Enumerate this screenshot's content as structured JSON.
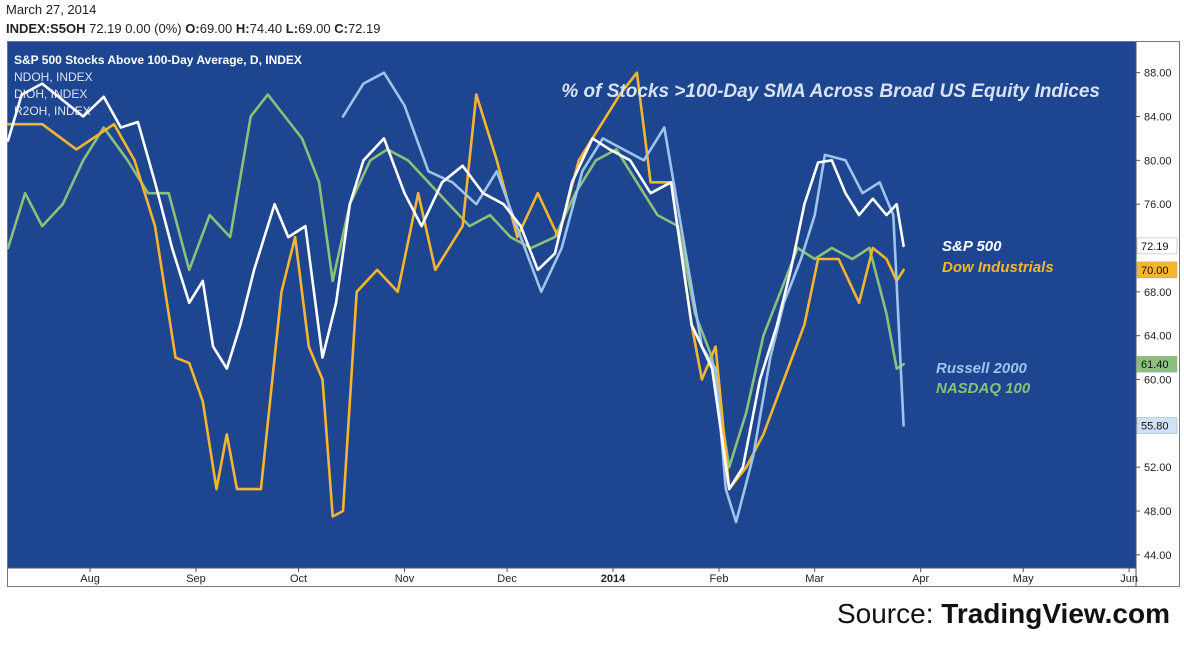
{
  "header": {
    "date": "March 27, 2014",
    "symbol": "INDEX:S5OH",
    "last": "72.19",
    "change": "0.00 (0%)",
    "open_label": "O:",
    "open": "69.00",
    "high_label": "H:",
    "high": "74.40",
    "low_label": "L:",
    "low": "69.00",
    "close_label": "C:",
    "close": "72.19"
  },
  "source": {
    "prefix": "Source: ",
    "brand": "TradingView.com"
  },
  "colors": {
    "background": "#1e4690",
    "sp500": "#ffffff",
    "dow": "#f5b52e",
    "russell": "#9ec4ec",
    "nasdaq": "#8cc07a"
  },
  "chart_data": {
    "type": "line",
    "title": "% of Stocks >100-Day SMA Across Broad US Equity Indices",
    "legend_top_left": [
      "S&P 500 Stocks Above 100-Day Average, D, INDEX",
      "NDOH, INDEX",
      "DIOH, INDEX",
      "R2OH, INDEX"
    ],
    "series_labels": [
      {
        "key": "sp500",
        "text": "S&P 500"
      },
      {
        "key": "dow",
        "text": "Dow Industrials"
      },
      {
        "key": "russell",
        "text": "Russell 2000"
      },
      {
        "key": "nasdaq",
        "text": "NASDAQ 100"
      }
    ],
    "x_ticks": [
      {
        "label": "Aug",
        "x": "2013-08-01"
      },
      {
        "label": "Sep",
        "x": "2013-09-01"
      },
      {
        "label": "Oct",
        "x": "2013-10-01"
      },
      {
        "label": "Nov",
        "x": "2013-11-01"
      },
      {
        "label": "Dec",
        "x": "2013-12-01"
      },
      {
        "label": "2014",
        "x": "2014-01-01"
      },
      {
        "label": "Feb",
        "x": "2014-02-01"
      },
      {
        "label": "Mar",
        "x": "2014-03-01"
      },
      {
        "label": "Apr",
        "x": "2014-04-01"
      },
      {
        "label": "May",
        "x": "2014-05-01"
      },
      {
        "label": "Jun",
        "x": "2014-06-01"
      }
    ],
    "xlim": [
      "2013-07-08",
      "2014-06-03"
    ],
    "y_ticks": [
      "44.00",
      "48.00",
      "52.00",
      "56.00",
      "60.00",
      "64.00",
      "68.00",
      "72.00",
      "76.00",
      "80.00",
      "84.00",
      "88.00"
    ],
    "ylim": [
      42.8,
      90.8
    ],
    "price_tags": [
      {
        "key": "sp500",
        "value": "72.19"
      },
      {
        "key": "dow",
        "value": "70.00"
      },
      {
        "key": "russell",
        "value": "55.80"
      },
      {
        "key": "nasdaq",
        "value": "61.40"
      }
    ],
    "series": [
      {
        "key": "sp500",
        "points": [
          [
            "2013-07-08",
            81.8
          ],
          [
            "2013-07-12",
            86
          ],
          [
            "2013-07-18",
            87
          ],
          [
            "2013-07-24",
            85.5
          ],
          [
            "2013-07-30",
            84
          ],
          [
            "2013-08-05",
            85.8
          ],
          [
            "2013-08-10",
            83
          ],
          [
            "2013-08-15",
            83.5
          ],
          [
            "2013-08-20",
            78
          ],
          [
            "2013-08-25",
            72
          ],
          [
            "2013-08-30",
            67
          ],
          [
            "2013-09-03",
            69
          ],
          [
            "2013-09-06",
            63
          ],
          [
            "2013-09-10",
            61
          ],
          [
            "2013-09-14",
            65
          ],
          [
            "2013-09-18",
            70
          ],
          [
            "2013-09-24",
            76
          ],
          [
            "2013-09-28",
            73
          ],
          [
            "2013-10-03",
            74
          ],
          [
            "2013-10-08",
            62
          ],
          [
            "2013-10-12",
            67
          ],
          [
            "2013-10-16",
            76
          ],
          [
            "2013-10-20",
            80
          ],
          [
            "2013-10-26",
            82
          ],
          [
            "2013-11-01",
            77
          ],
          [
            "2013-11-06",
            74
          ],
          [
            "2013-11-12",
            78
          ],
          [
            "2013-11-18",
            79.5
          ],
          [
            "2013-11-24",
            77
          ],
          [
            "2013-11-30",
            76
          ],
          [
            "2013-12-05",
            74
          ],
          [
            "2013-12-10",
            70
          ],
          [
            "2013-12-15",
            71.5
          ],
          [
            "2013-12-20",
            78
          ],
          [
            "2013-12-26",
            82
          ],
          [
            "2013-12-31",
            81
          ],
          [
            "2014-01-06",
            80
          ],
          [
            "2014-01-12",
            77
          ],
          [
            "2014-01-18",
            78
          ],
          [
            "2014-01-24",
            65
          ],
          [
            "2014-01-30",
            61
          ],
          [
            "2014-02-04",
            50
          ],
          [
            "2014-02-08",
            52
          ],
          [
            "2014-02-13",
            60
          ],
          [
            "2014-02-18",
            65
          ],
          [
            "2014-02-22",
            70
          ],
          [
            "2014-02-26",
            76
          ],
          [
            "2014-03-02",
            79.8
          ],
          [
            "2014-03-06",
            80
          ],
          [
            "2014-03-10",
            77
          ],
          [
            "2014-03-14",
            75
          ],
          [
            "2014-03-18",
            76.5
          ],
          [
            "2014-03-22",
            75
          ],
          [
            "2014-03-25",
            76
          ],
          [
            "2014-03-27",
            72.19
          ]
        ]
      },
      {
        "key": "dow",
        "points": [
          [
            "2013-07-08",
            83.3
          ],
          [
            "2013-07-18",
            83.3
          ],
          [
            "2013-07-28",
            81
          ],
          [
            "2013-08-08",
            83.3
          ],
          [
            "2013-08-14",
            80
          ],
          [
            "2013-08-20",
            74
          ],
          [
            "2013-08-26",
            62
          ],
          [
            "2013-08-30",
            61.5
          ],
          [
            "2013-09-03",
            58
          ],
          [
            "2013-09-07",
            50
          ],
          [
            "2013-09-10",
            55
          ],
          [
            "2013-09-13",
            50
          ],
          [
            "2013-09-20",
            50
          ],
          [
            "2013-09-26",
            68
          ],
          [
            "2013-09-30",
            73
          ],
          [
            "2013-10-04",
            63
          ],
          [
            "2013-10-08",
            60
          ],
          [
            "2013-10-11",
            47.5
          ],
          [
            "2013-10-14",
            48
          ],
          [
            "2013-10-18",
            68
          ],
          [
            "2013-10-24",
            70
          ],
          [
            "2013-10-30",
            68
          ],
          [
            "2013-11-05",
            77
          ],
          [
            "2013-11-10",
            70
          ],
          [
            "2013-11-18",
            74
          ],
          [
            "2013-11-22",
            86
          ],
          [
            "2013-11-28",
            80
          ],
          [
            "2013-12-04",
            73
          ],
          [
            "2013-12-10",
            77
          ],
          [
            "2013-12-16",
            73
          ],
          [
            "2013-12-22",
            80
          ],
          [
            "2013-12-28",
            83
          ],
          [
            "2014-01-03",
            86
          ],
          [
            "2014-01-08",
            88
          ],
          [
            "2014-01-12",
            78
          ],
          [
            "2014-01-18",
            78
          ],
          [
            "2014-01-24",
            65
          ],
          [
            "2014-01-27",
            60
          ],
          [
            "2014-01-31",
            63
          ],
          [
            "2014-02-04",
            50
          ],
          [
            "2014-02-09",
            52
          ],
          [
            "2014-02-14",
            55
          ],
          [
            "2014-02-20",
            60
          ],
          [
            "2014-02-26",
            65
          ],
          [
            "2014-03-02",
            71
          ],
          [
            "2014-03-08",
            71
          ],
          [
            "2014-03-14",
            67
          ],
          [
            "2014-03-18",
            72
          ],
          [
            "2014-03-22",
            71
          ],
          [
            "2014-03-25",
            69
          ],
          [
            "2014-03-27",
            70
          ]
        ]
      },
      {
        "key": "russell",
        "points": [
          [
            "2013-10-14",
            84
          ],
          [
            "2013-10-20",
            87
          ],
          [
            "2013-10-26",
            88
          ],
          [
            "2013-11-01",
            85
          ],
          [
            "2013-11-08",
            79
          ],
          [
            "2013-11-15",
            78
          ],
          [
            "2013-11-22",
            76
          ],
          [
            "2013-11-28",
            79
          ],
          [
            "2013-12-05",
            73
          ],
          [
            "2013-12-11",
            68
          ],
          [
            "2013-12-17",
            72
          ],
          [
            "2013-12-23",
            79
          ],
          [
            "2013-12-29",
            82
          ],
          [
            "2014-01-04",
            81
          ],
          [
            "2014-01-10",
            80
          ],
          [
            "2014-01-16",
            83
          ],
          [
            "2014-01-22",
            72
          ],
          [
            "2014-01-27",
            63
          ],
          [
            "2014-01-31",
            61
          ],
          [
            "2014-02-03",
            50
          ],
          [
            "2014-02-06",
            47
          ],
          [
            "2014-02-11",
            53
          ],
          [
            "2014-02-16",
            62
          ],
          [
            "2014-02-20",
            67
          ],
          [
            "2014-02-25",
            71
          ],
          [
            "2014-03-01",
            75
          ],
          [
            "2014-03-04",
            80.5
          ],
          [
            "2014-03-10",
            80
          ],
          [
            "2014-03-15",
            77
          ],
          [
            "2014-03-20",
            78
          ],
          [
            "2014-03-24",
            75
          ],
          [
            "2014-03-27",
            55.8
          ]
        ]
      },
      {
        "key": "nasdaq",
        "points": [
          [
            "2013-07-08",
            72
          ],
          [
            "2013-07-13",
            77
          ],
          [
            "2013-07-18",
            74
          ],
          [
            "2013-07-24",
            76
          ],
          [
            "2013-07-30",
            80
          ],
          [
            "2013-08-05",
            83
          ],
          [
            "2013-08-12",
            80
          ],
          [
            "2013-08-18",
            77
          ],
          [
            "2013-08-24",
            77
          ],
          [
            "2013-08-30",
            70
          ],
          [
            "2013-09-05",
            75
          ],
          [
            "2013-09-11",
            73
          ],
          [
            "2013-09-17",
            84
          ],
          [
            "2013-09-22",
            86
          ],
          [
            "2013-09-27",
            84
          ],
          [
            "2013-10-02",
            82
          ],
          [
            "2013-10-07",
            78
          ],
          [
            "2013-10-11",
            69
          ],
          [
            "2013-10-16",
            76
          ],
          [
            "2013-10-22",
            80
          ],
          [
            "2013-10-27",
            81
          ],
          [
            "2013-11-02",
            80
          ],
          [
            "2013-11-08",
            78
          ],
          [
            "2013-11-14",
            76
          ],
          [
            "2013-11-20",
            74
          ],
          [
            "2013-11-26",
            75
          ],
          [
            "2013-12-02",
            73
          ],
          [
            "2013-12-08",
            72
          ],
          [
            "2013-12-15",
            73
          ],
          [
            "2013-12-21",
            77
          ],
          [
            "2013-12-27",
            80
          ],
          [
            "2014-01-02",
            81
          ],
          [
            "2014-01-08",
            78
          ],
          [
            "2014-01-14",
            75
          ],
          [
            "2014-01-20",
            74
          ],
          [
            "2014-01-25",
            66
          ],
          [
            "2014-01-30",
            62
          ],
          [
            "2014-02-04",
            52
          ],
          [
            "2014-02-09",
            57
          ],
          [
            "2014-02-14",
            64
          ],
          [
            "2014-02-19",
            68
          ],
          [
            "2014-02-24",
            72
          ],
          [
            "2014-03-01",
            71
          ],
          [
            "2014-03-06",
            72
          ],
          [
            "2014-03-12",
            71
          ],
          [
            "2014-03-17",
            72
          ],
          [
            "2014-03-22",
            66
          ],
          [
            "2014-03-25",
            61
          ],
          [
            "2014-03-27",
            61.4
          ]
        ]
      }
    ]
  }
}
